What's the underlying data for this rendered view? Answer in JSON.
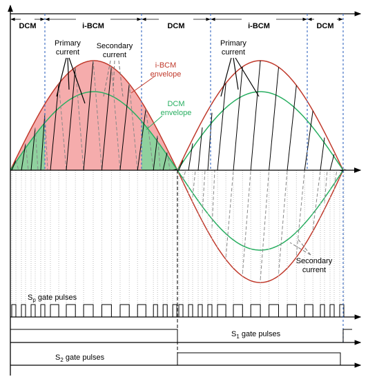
{
  "regions": [
    "DCM",
    "i-BCM",
    "DCM",
    "i-BCM",
    "DCM"
  ],
  "annotations": {
    "primary_current_1": [
      "Primary",
      "current"
    ],
    "secondary_current_1": [
      "Secondary",
      "current"
    ],
    "ibcm_envelope": [
      "i-BCM",
      "envelope"
    ],
    "dcm_envelope": [
      "DCM",
      "envelope"
    ],
    "primary_current_2": [
      "Primary",
      "current"
    ],
    "secondary_current_2": [
      "Secondary",
      "current"
    ]
  },
  "gate_labels": {
    "sp": {
      "symbol": "S",
      "subscript": "p",
      "text": " gate pulses"
    },
    "s1": {
      "symbol": "S",
      "subscript": "1",
      "text": " gate pulses"
    },
    "s2": {
      "symbol": "S",
      "subscript": "2",
      "text": " gate pulses"
    }
  }
}
